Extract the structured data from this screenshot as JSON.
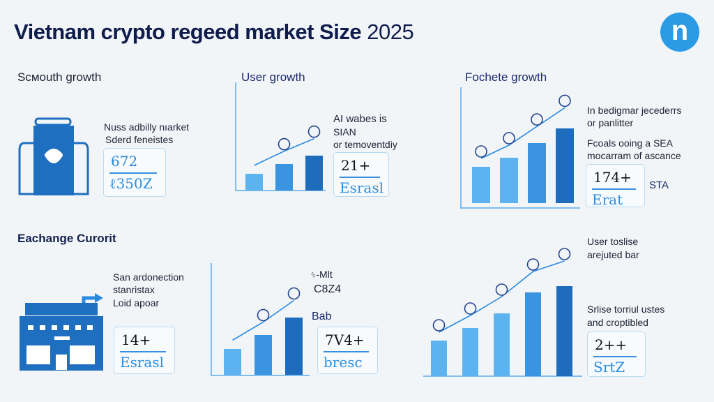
{
  "header": {
    "title": "Vietnam crypto regeed market Size",
    "year": "2025",
    "logo": "n"
  },
  "colors": {
    "bar_light": "#5db3f0",
    "bar_mid": "#3a94e0",
    "bar_dark": "#1e6dbd",
    "title": "#0f1d4d",
    "logo": "#2b9be6"
  },
  "panels": [
    {
      "title": "Scмouth growth",
      "icon": "backpack-icon",
      "lines": [
        "Nuss adbilly nıarket",
        "Sderd feneistes"
      ],
      "box": {
        "value": "672",
        "label": "ℓ350Z"
      }
    },
    {
      "title": "User growth",
      "lines": [
        "AI wabes is",
        "SIAN",
        "or temoventdiy"
      ],
      "box": {
        "value": "21+",
        "label": "Esrasl"
      },
      "bars": [
        1,
        1.6,
        2.1
      ]
    },
    {
      "title": "Fochete growth",
      "lines": [
        "In bedigmar jecederrs",
        "or panlitter",
        "Fcoals ooing a SEA",
        "mocarram of ascance"
      ],
      "box": {
        "value": "174+",
        "label": "Erat"
      },
      "side": "STA",
      "bars": [
        2,
        2.5,
        3.3,
        4.1
      ]
    },
    {
      "title": "Eachange Curorit",
      "icon": "building-icon",
      "lines": [
        "San ardonection",
        "stanristax",
        "Loid apoar"
      ],
      "box": {
        "value": "14+",
        "label": "Esrasl"
      }
    },
    {
      "lines": [
        "ᛃ-Mlt",
        "C8Z4",
        "Bab"
      ],
      "box": {
        "value": "7V4+",
        "label": "bresc"
      },
      "bars": [
        1.5,
        2.3,
        3.3
      ]
    },
    {
      "lines": [
        "User toslise",
        "arejuted bar",
        "Srlise torriul ustes",
        "and croptibled"
      ],
      "box": {
        "value": "2++",
        "label": "SrtZ"
      },
      "bars": [
        1.7,
        2.3,
        3,
        4,
        4.3
      ]
    }
  ]
}
